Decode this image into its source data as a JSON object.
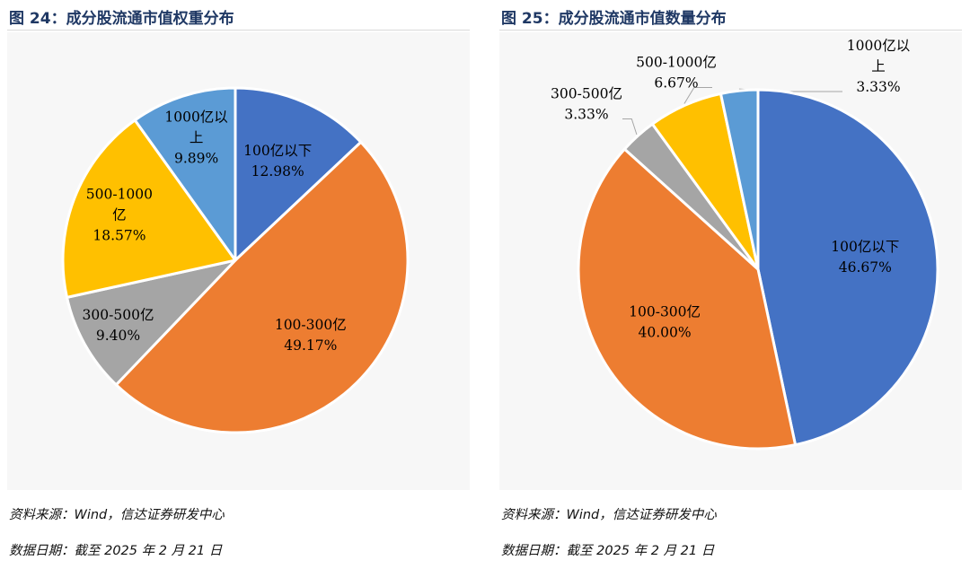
{
  "chart_data": [
    {
      "type": "pie",
      "figure_title": "图 24：成分股流通市值权重分布",
      "source_note": "资料来源：Wind，信达证券研发中心",
      "date_note": "数据日期：截至 2025 年 2 月 21 日",
      "slices": [
        {
          "name_lines": [
            "100亿以下"
          ],
          "value": 12.98,
          "label": "12.98%",
          "color": "#4472C4",
          "label_color": "#000000"
        },
        {
          "name_lines": [
            "100-300亿"
          ],
          "value": 49.17,
          "label": "49.17%",
          "color": "#ED7D31",
          "label_color": "#000000"
        },
        {
          "name_lines": [
            "300-500亿"
          ],
          "value": 9.4,
          "label": "9.40%",
          "color": "#A5A5A5",
          "label_color": "#000000"
        },
        {
          "name_lines": [
            "500-1000",
            "亿"
          ],
          "value": 18.57,
          "label": "18.57%",
          "color": "#FFC000",
          "label_color": "#000000"
        },
        {
          "name_lines": [
            "1000亿以",
            "上"
          ],
          "value": 9.89,
          "label": "9.89%",
          "color": "#5B9BD5",
          "label_color": "#000000"
        }
      ]
    },
    {
      "type": "pie",
      "figure_title": "图 25：成分股流通市值数量分布",
      "source_note": "资料来源：Wind，信达证券研发中心",
      "date_note": "数据日期：截至 2025 年 2 月 21 日",
      "slices": [
        {
          "name_lines": [
            "100亿以下"
          ],
          "value": 46.67,
          "label": "46.67%",
          "color": "#4472C4",
          "label_color": "#000000"
        },
        {
          "name_lines": [
            "100-300亿"
          ],
          "value": 40.0,
          "label": "40.00%",
          "color": "#ED7D31",
          "label_color": "#000000"
        },
        {
          "name_lines": [
            "300-500亿"
          ],
          "value": 3.33,
          "label": "3.33%",
          "color": "#A5A5A5",
          "label_color": "#000000"
        },
        {
          "name_lines": [
            "500-1000亿"
          ],
          "value": 6.67,
          "label": "6.67%",
          "color": "#FFC000",
          "label_color": "#000000"
        },
        {
          "name_lines": [
            "1000亿以",
            "上"
          ],
          "value": 3.33,
          "label": "3.33%",
          "color": "#5B9BD5",
          "label_color": "#000000"
        }
      ]
    }
  ]
}
